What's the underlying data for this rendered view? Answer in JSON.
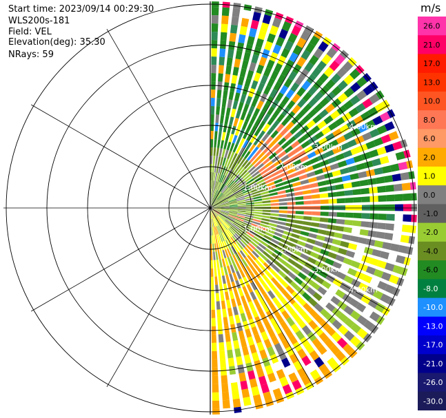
{
  "header": {
    "start_time": "Start time: 2023/09/14 00:29:30",
    "station": "WLS200s-181",
    "field": "Field: VEL",
    "elevation": "Elevation(deg): 35.30",
    "nrays": "NRays: 59"
  },
  "colorbar": {
    "unit": "m/s",
    "ticks": [
      "26.0",
      "21.0",
      "17.0",
      "13.0",
      "10.0",
      "8.0",
      "6.0",
      "2.0",
      "1.0",
      "0.0",
      "-1.0",
      "-2.0",
      "-4.0",
      "-6.0",
      "-8.0",
      "-10.0",
      "-13.0",
      "-17.0",
      "-21.0",
      "-26.0",
      "-30.0"
    ],
    "colors": [
      "#ff33aa",
      "#ff0066",
      "#ff1a00",
      "#ff3300",
      "#ff5522",
      "#ff7755",
      "#ff9966",
      "#ffaa00",
      "#ffff00",
      "#808080",
      "#606060",
      "#99cc33",
      "#6b8e23",
      "#228b22",
      "#008040",
      "#1e90ff",
      "#0000ff",
      "#0000cd",
      "#00008b",
      "#191970",
      "#1b1b5a"
    ]
  },
  "chart_data": {
    "type": "polar-ppi",
    "field": "VEL",
    "units": "m/s",
    "range_ring_labels": [
      "1.00km",
      "2.00km",
      "3.00km",
      "4.00km"
    ],
    "vmin": -30.0,
    "vmax": 26.0
  }
}
